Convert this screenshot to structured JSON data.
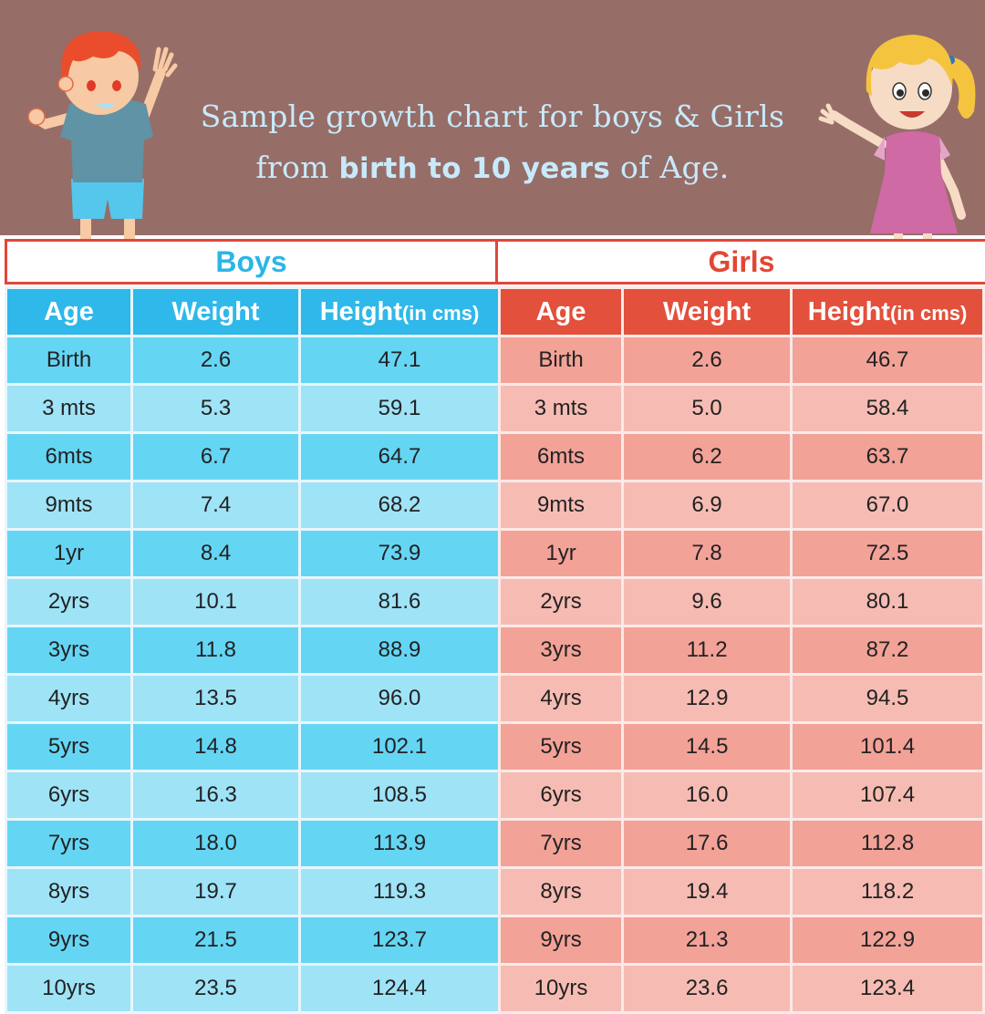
{
  "title": {
    "line1": "Sample growth chart for boys & Girls",
    "line2_prefix": "from ",
    "line2_bold": "birth to 10 years",
    "line2_suffix": " of Age."
  },
  "boys": {
    "label": "Boys",
    "color": "#2fb8ea",
    "headers": {
      "age": "Age",
      "weight": "Weight",
      "height": "Height",
      "height_unit": "(in cms)"
    },
    "rows": [
      [
        "Birth",
        "2.6",
        "47.1"
      ],
      [
        "3 mts",
        "5.3",
        "59.1"
      ],
      [
        "6mts",
        "6.7",
        "64.7"
      ],
      [
        "9mts",
        "7.4",
        "68.2"
      ],
      [
        "1yr",
        "8.4",
        "73.9"
      ],
      [
        "2yrs",
        "10.1",
        "81.6"
      ],
      [
        "3yrs",
        "11.8",
        "88.9"
      ],
      [
        "4yrs",
        "13.5",
        "96.0"
      ],
      [
        "5yrs",
        "14.8",
        "102.1"
      ],
      [
        "6yrs",
        "16.3",
        "108.5"
      ],
      [
        "7yrs",
        "18.0",
        "113.9"
      ],
      [
        "8yrs",
        "19.7",
        "119.3"
      ],
      [
        "9yrs",
        "21.5",
        "123.7"
      ],
      [
        "10yrs",
        "23.5",
        "124.4"
      ]
    ]
  },
  "girls": {
    "label": "Girls",
    "color": "#e3503b",
    "headers": {
      "age": "Age",
      "weight": "Weight",
      "height": "Height",
      "height_unit": "(in cms)"
    },
    "rows": [
      [
        "Birth",
        "2.6",
        "46.7"
      ],
      [
        "3 mts",
        "5.0",
        "58.4"
      ],
      [
        "6mts",
        "6.2",
        "63.7"
      ],
      [
        "9mts",
        "6.9",
        "67.0"
      ],
      [
        "1yr",
        "7.8",
        "72.5"
      ],
      [
        "2yrs",
        "9.6",
        "80.1"
      ],
      [
        "3yrs",
        "11.2",
        "87.2"
      ],
      [
        "4yrs",
        "12.9",
        "94.5"
      ],
      [
        "5yrs",
        "14.5",
        "101.4"
      ],
      [
        "6yrs",
        "16.0",
        "107.4"
      ],
      [
        "7yrs",
        "17.6",
        "112.8"
      ],
      [
        "8yrs",
        "19.4",
        "118.2"
      ],
      [
        "9yrs",
        "21.3",
        "122.9"
      ],
      [
        "10yrs",
        "23.6",
        "123.4"
      ]
    ]
  },
  "colors": {
    "banner": "#976d67",
    "title_text": "#c7eafb",
    "accent_red": "#e0473a"
  }
}
